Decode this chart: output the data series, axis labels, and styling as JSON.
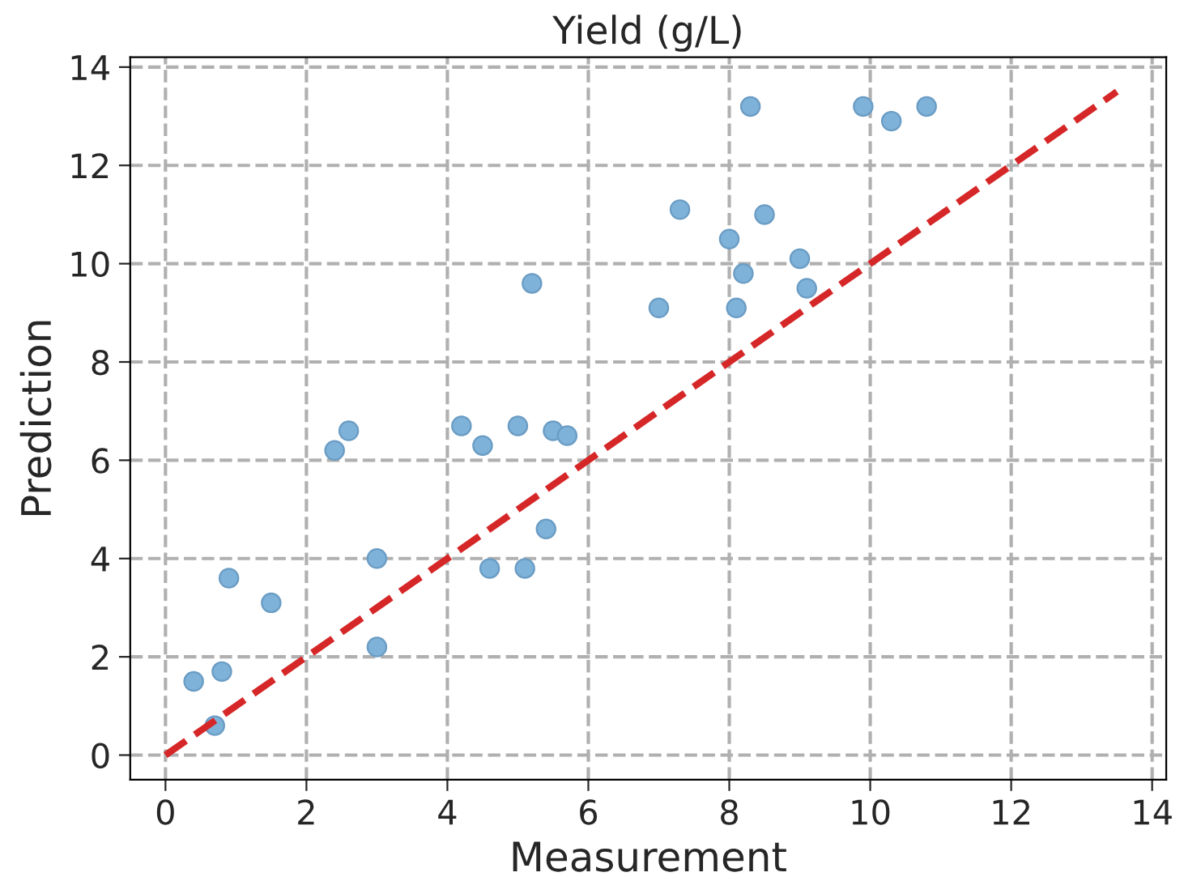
{
  "chart_data": {
    "type": "scatter",
    "title": "Yield (g/L)",
    "xlabel": "Measurement",
    "ylabel": "Prediction",
    "xlim": [
      -0.5,
      14.2
    ],
    "ylim": [
      -0.5,
      14.2
    ],
    "xticks": [
      0,
      2,
      4,
      6,
      8,
      10,
      12,
      14
    ],
    "yticks": [
      0,
      2,
      4,
      6,
      8,
      10,
      12,
      14
    ],
    "grid": true,
    "series": [
      {
        "marker": "circle",
        "color": "#7fb2d8",
        "x": [
          0.4,
          0.7,
          0.8,
          0.9,
          1.5,
          2.4,
          2.6,
          3.0,
          3.0,
          4.2,
          4.5,
          4.6,
          5.0,
          5.1,
          5.2,
          5.4,
          5.5,
          5.7,
          7.0,
          7.3,
          8.0,
          8.1,
          8.2,
          8.3,
          8.5,
          9.0,
          9.1,
          9.9,
          10.3,
          10.8
        ],
        "values": [
          1.5,
          0.6,
          1.7,
          3.6,
          3.1,
          6.2,
          6.6,
          4.0,
          2.2,
          6.7,
          6.3,
          3.8,
          6.7,
          3.8,
          9.6,
          4.6,
          6.6,
          6.5,
          9.1,
          11.1,
          10.5,
          9.1,
          9.8,
          13.2,
          11.0,
          10.1,
          9.5,
          13.2,
          12.9,
          13.2
        ]
      },
      {
        "type": "line",
        "color": "#d62728",
        "line_style": "dashed",
        "x": [
          0,
          13.5
        ],
        "values": [
          0,
          13.5
        ]
      }
    ]
  }
}
